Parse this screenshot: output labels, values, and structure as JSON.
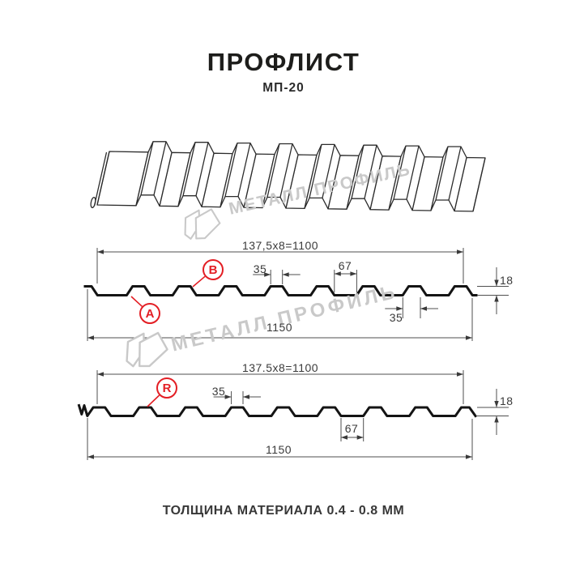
{
  "header": {
    "title": "ПРОФЛИСТ",
    "subtitle": "МП-20"
  },
  "footer": {
    "text": "ТОЛЩИНА МАТЕРИАЛА 0.4 - 0.8 ММ"
  },
  "watermark": {
    "text": "МЕТАЛЛ ПРОФИЛЬ"
  },
  "colors": {
    "accent_red": "#e31e24",
    "profile_line": "#141414",
    "dim_line": "#4f4f4f",
    "watermark_gray": "#c9c9c9"
  },
  "top_profile": {
    "pitch_formula": "137,5x8=1100",
    "overall_width": "1150",
    "rib_top_width": "35",
    "valley_width": "67",
    "rib_base_width": "35",
    "height": "18",
    "label_a": "A",
    "label_b": "B"
  },
  "bottom_profile": {
    "pitch_formula": "137.5x8=1100",
    "overall_width": "1150",
    "rib_top_width": "35",
    "valley_width": "67",
    "height": "18",
    "label_r": "R"
  }
}
